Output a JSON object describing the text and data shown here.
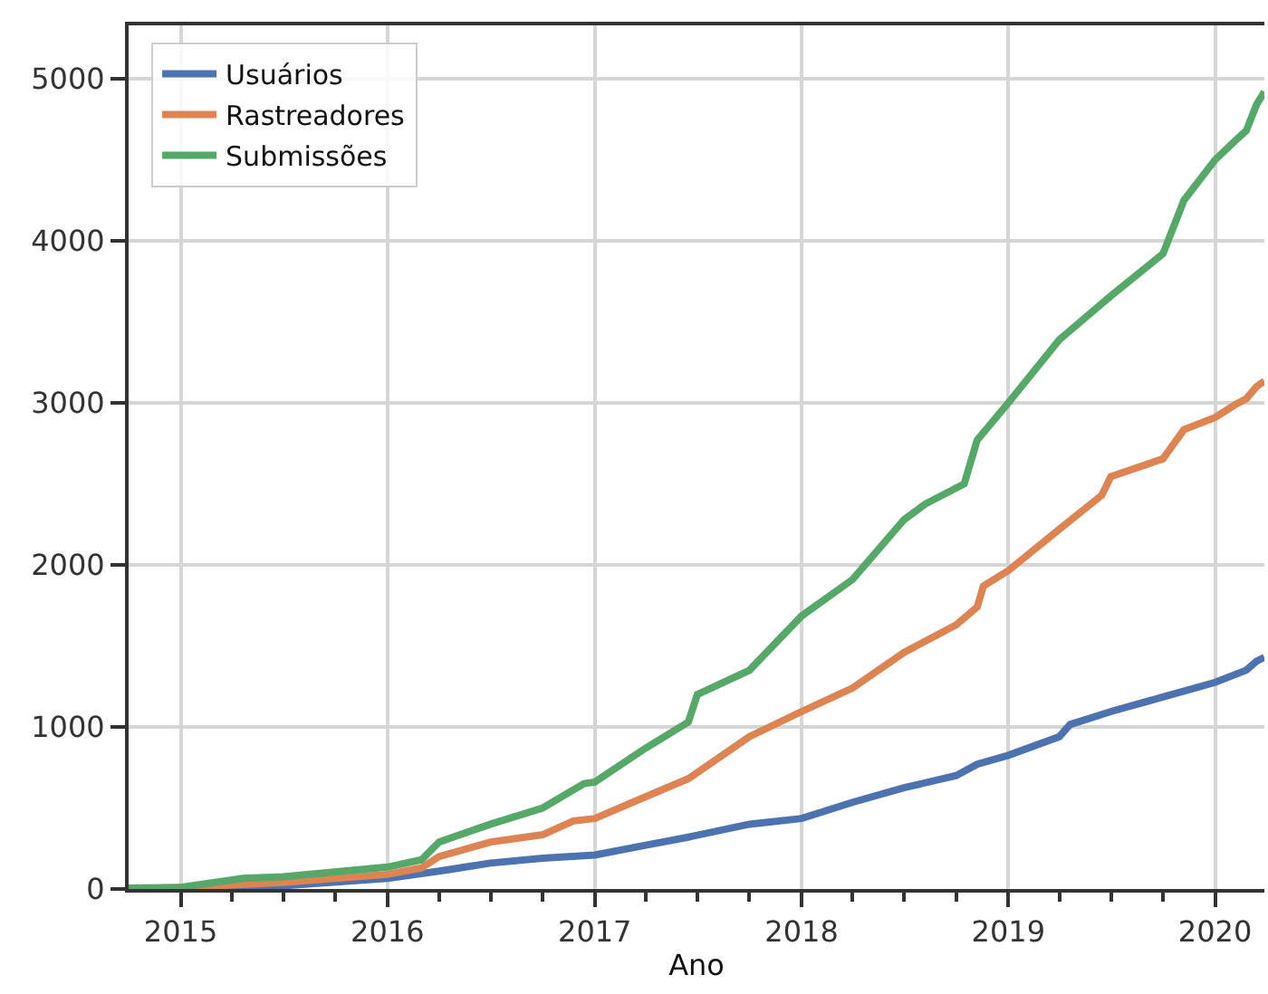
{
  "chart_data": {
    "type": "line",
    "xlabel": "Ano",
    "xlim": [
      "2014-10-01",
      "2020-03-28"
    ],
    "xticks": [
      {
        "value": "2015-01-01",
        "label": "2015"
      },
      {
        "value": "2015-04-01",
        "label": null
      },
      {
        "value": "2015-07-01",
        "label": null
      },
      {
        "value": "2015-10-01",
        "label": null
      },
      {
        "value": "2016-01-01",
        "label": "2016"
      },
      {
        "value": "2016-04-01",
        "label": null
      },
      {
        "value": "2016-07-01",
        "label": null
      },
      {
        "value": "2016-10-01",
        "label": null
      },
      {
        "value": "2017-01-01",
        "label": "2017"
      },
      {
        "value": "2017-04-01",
        "label": null
      },
      {
        "value": "2017-07-01",
        "label": null
      },
      {
        "value": "2017-10-01",
        "label": null
      },
      {
        "value": "2018-01-01",
        "label": "2018"
      },
      {
        "value": "2018-04-01",
        "label": null
      },
      {
        "value": "2018-07-01",
        "label": null
      },
      {
        "value": "2018-10-01",
        "label": null
      },
      {
        "value": "2019-01-01",
        "label": "2019"
      },
      {
        "value": "2019-04-01",
        "label": null
      },
      {
        "value": "2019-07-01",
        "label": null
      },
      {
        "value": "2019-10-01",
        "label": null
      },
      {
        "value": "2020-01-01",
        "label": "2020"
      }
    ],
    "ylim": [
      0,
      5330
    ],
    "yticks": [
      0,
      1000,
      2000,
      3000,
      4000,
      5000
    ],
    "grid": true,
    "legend": "top left",
    "marker": "none",
    "line_style": "solid",
    "series": [
      {
        "name": "Usuários",
        "color": "#4c72b0",
        "x": [
          "2014-10-01",
          "2015-04-01",
          "2015-07-01",
          "2016-01-01",
          "2016-04-01",
          "2016-07-01",
          "2016-10-01",
          "2017-01-01",
          "2017-04-01",
          "2017-06-15",
          "2017-10-01",
          "2018-01-01",
          "2018-04-01",
          "2018-07-01",
          "2018-10-01",
          "2018-11-07",
          "2019-01-01",
          "2019-04-01",
          "2019-04-20",
          "2019-07-01",
          "2019-10-01",
          "2020-01-01",
          "2020-02-25",
          "2020-03-14",
          "2020-03-28"
        ],
        "values": [
          0,
          5,
          20,
          65,
          110,
          160,
          190,
          210,
          270,
          320,
          400,
          435,
          535,
          625,
          700,
          770,
          825,
          940,
          1015,
          1095,
          1185,
          1275,
          1350,
          1405,
          1430
        ]
      },
      {
        "name": "Rastreadores",
        "color": "#dd8452",
        "x": [
          "2014-10-01",
          "2015-01-01",
          "2015-07-01",
          "2016-01-01",
          "2016-03-01",
          "2016-04-01",
          "2016-07-01",
          "2016-10-01",
          "2016-11-24",
          "2017-01-01",
          "2017-04-01",
          "2017-06-15",
          "2017-10-01",
          "2018-01-01",
          "2018-04-01",
          "2018-07-01",
          "2018-10-01",
          "2018-11-07",
          "2018-11-18",
          "2019-01-01",
          "2019-04-01",
          "2019-06-15",
          "2019-07-01",
          "2019-10-01",
          "2019-11-07",
          "2020-01-01",
          "2020-02-06",
          "2020-02-25",
          "2020-03-14",
          "2020-03-28"
        ],
        "values": [
          0,
          10,
          40,
          90,
          130,
          200,
          290,
          335,
          420,
          435,
          570,
          680,
          940,
          1095,
          1240,
          1460,
          1630,
          1740,
          1870,
          1965,
          2220,
          2430,
          2545,
          2655,
          2835,
          2910,
          2990,
          3025,
          3100,
          3135
        ]
      },
      {
        "name": "Submissões",
        "color": "#55a868",
        "x": [
          "2014-10-01",
          "2015-01-01",
          "2015-04-20",
          "2015-07-01",
          "2016-01-01",
          "2016-03-01",
          "2016-04-01",
          "2016-07-01",
          "2016-10-01",
          "2016-12-13",
          "2017-01-01",
          "2017-04-01",
          "2017-06-15",
          "2017-07-01",
          "2017-10-01",
          "2018-01-01",
          "2018-04-01",
          "2018-07-01",
          "2018-08-08",
          "2018-10-15",
          "2018-11-07",
          "2019-01-01",
          "2019-04-01",
          "2019-07-01",
          "2019-10-01",
          "2019-11-07",
          "2020-01-01",
          "2020-02-06",
          "2020-02-25",
          "2020-03-14",
          "2020-03-28"
        ],
        "values": [
          5,
          10,
          65,
          75,
          135,
          180,
          290,
          400,
          500,
          650,
          660,
          870,
          1030,
          1200,
          1350,
          1685,
          1910,
          2280,
          2377,
          2500,
          2770,
          3000,
          3390,
          3660,
          3920,
          4250,
          4500,
          4620,
          4680,
          4840,
          4920
        ]
      }
    ]
  }
}
